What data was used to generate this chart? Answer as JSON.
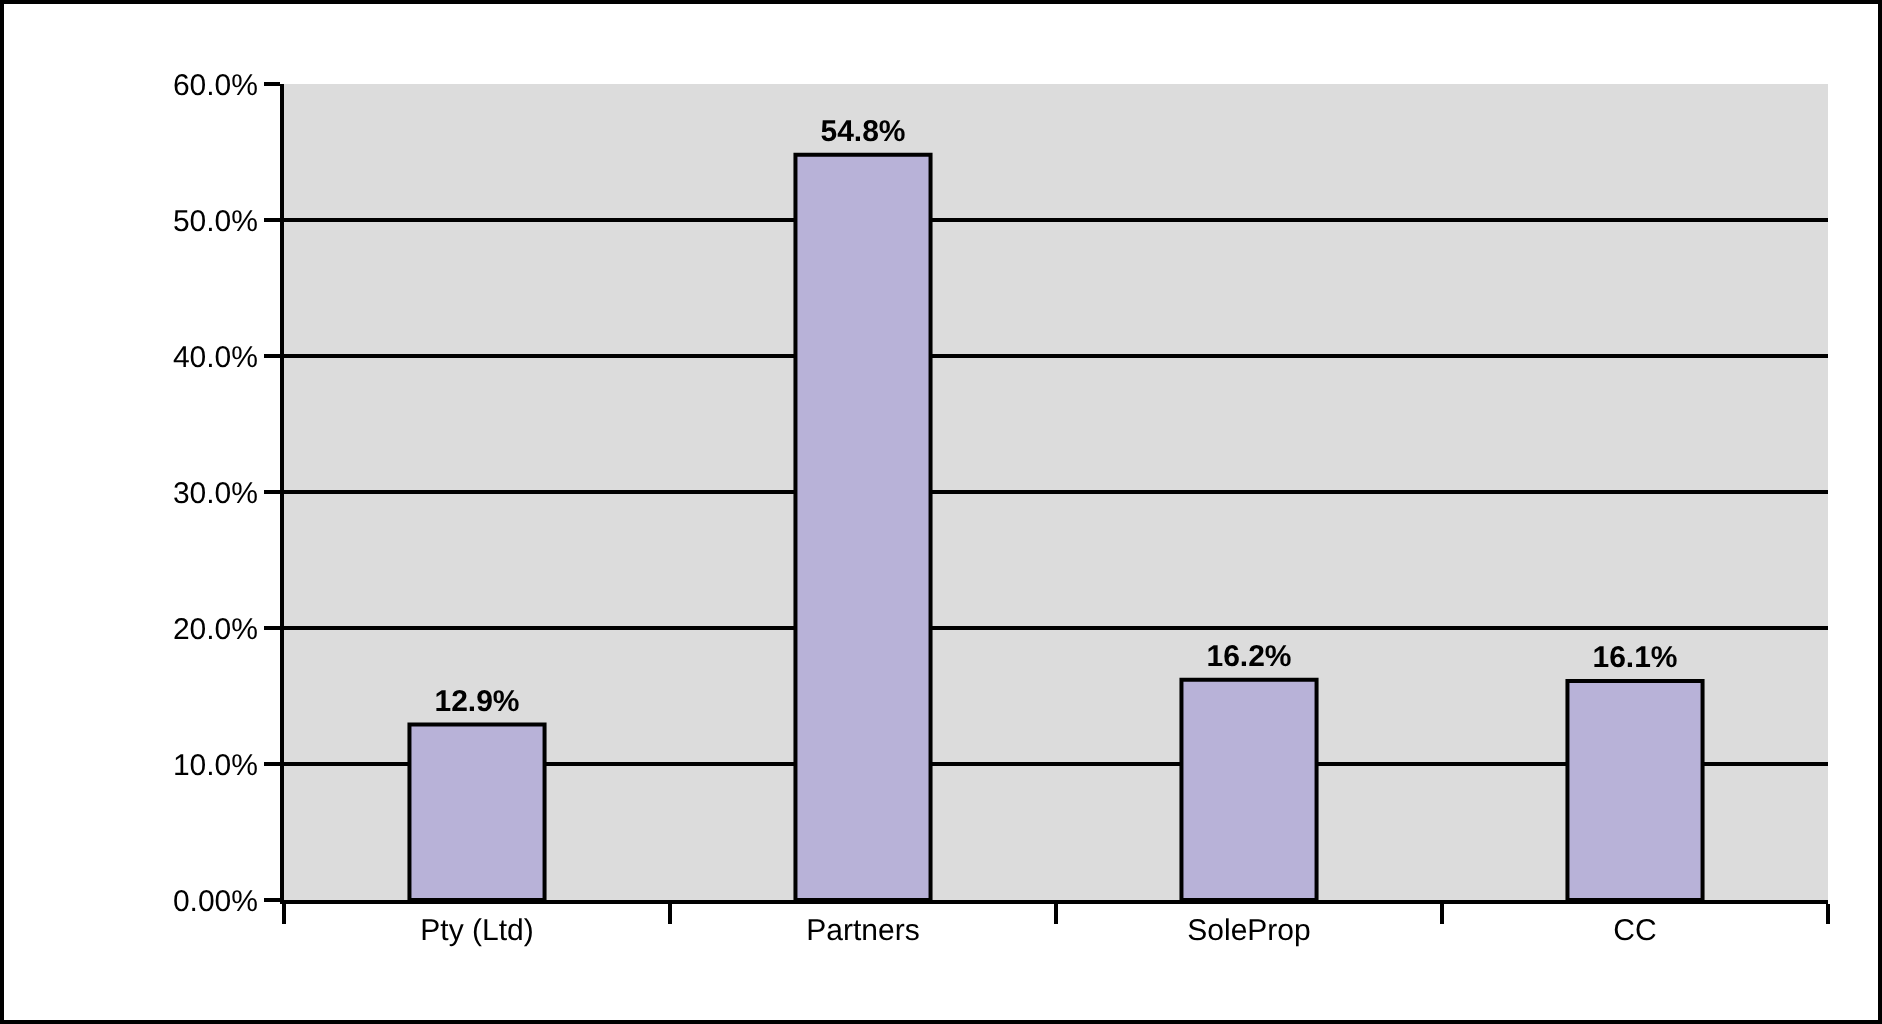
{
  "chart_data": {
    "type": "bar",
    "categories": [
      "Pty (Ltd)",
      "Partners",
      "SoleProp",
      "CC"
    ],
    "values": [
      12.9,
      54.8,
      16.2,
      16.1
    ],
    "color": "#b8b2d8",
    "value_labels": [
      "12.9%",
      "54.8%",
      "16.2%",
      "16.1%"
    ],
    "ylim": [
      0,
      60
    ],
    "yticks": [
      {
        "value": 0,
        "label": "0.00%"
      },
      {
        "value": 10,
        "label": "10.0%"
      },
      {
        "value": 20,
        "label": "20.0%"
      },
      {
        "value": 30,
        "label": "30.0%"
      },
      {
        "value": 40,
        "label": "40.0%"
      },
      {
        "value": 50,
        "label": "50.0%"
      },
      {
        "value": 60,
        "label": "60.0%"
      }
    ],
    "grid": "y",
    "legend": false
  }
}
